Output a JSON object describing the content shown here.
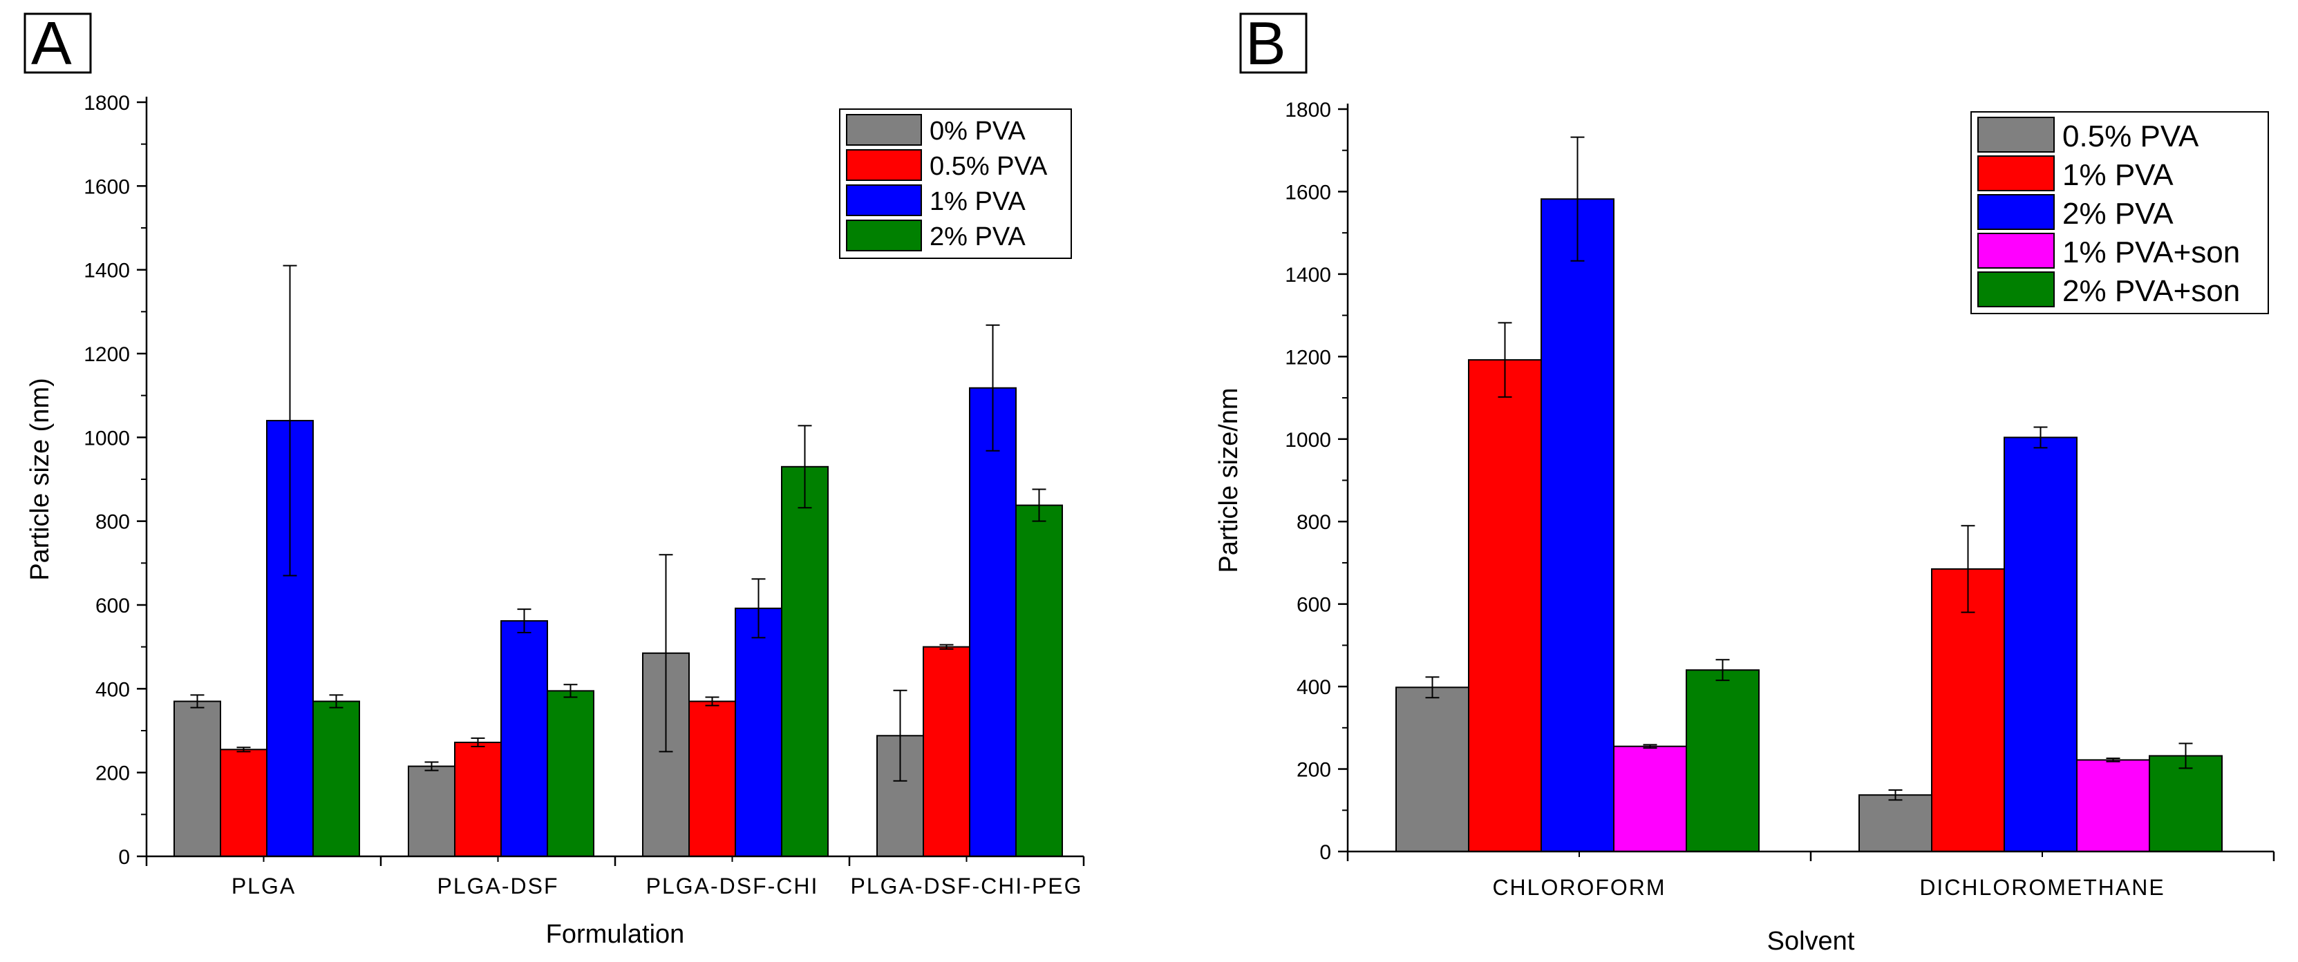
{
  "colors": {
    "gray": "#808080",
    "red": "#ff0000",
    "blue": "#0000ff",
    "green": "#008000",
    "magenta": "#ff00ff"
  },
  "chart_data": [
    {
      "type": "bar",
      "panel_label": "A",
      "xlabel": "Formulation",
      "ylabel": "Particle size (nm)",
      "ylim": [
        0,
        1800
      ],
      "yticks": [
        "0",
        "200",
        "400",
        "600",
        "800",
        "1000",
        "1200",
        "1400",
        "1600",
        "1800"
      ],
      "categories": [
        "PLGA",
        "PLGA-DSF",
        "PLGA-DSF-CHI",
        "PLGA-DSF-CHI-PEG"
      ],
      "legend_position": "top-right",
      "series": [
        {
          "name": "0% PVA",
          "color": "#808080",
          "values": [
            370,
            215,
            485,
            288
          ],
          "errors": [
            15,
            10,
            235,
            108
          ]
        },
        {
          "name": "0.5% PVA",
          "color": "#ff0000",
          "values": [
            255,
            272,
            370,
            500
          ],
          "errors": [
            5,
            10,
            10,
            5
          ]
        },
        {
          "name": "1% PVA",
          "color": "#0000ff",
          "values": [
            1040,
            562,
            592,
            1118
          ],
          "errors": [
            370,
            28,
            70,
            150
          ]
        },
        {
          "name": "2% PVA",
          "color": "#008000",
          "values": [
            370,
            395,
            930,
            838
          ],
          "errors": [
            15,
            15,
            98,
            38
          ]
        }
      ]
    },
    {
      "type": "bar",
      "panel_label": "B",
      "xlabel": "Solvent",
      "ylabel": "Particle size/nm",
      "ylim": [
        0,
        1800
      ],
      "yticks": [
        "0",
        "200",
        "400",
        "600",
        "800",
        "1000",
        "1200",
        "1400",
        "1600",
        "1800"
      ],
      "categories": [
        "CHLOROFORM",
        "DICHLOROMETHANE"
      ],
      "legend_position": "top-right",
      "series": [
        {
          "name": "0.5% PVA",
          "color": "#808080",
          "values": [
            398,
            137
          ],
          "errors": [
            25,
            12
          ]
        },
        {
          "name": "1% PVA",
          "color": "#ff0000",
          "values": [
            1192,
            685
          ],
          "errors": [
            90,
            105
          ]
        },
        {
          "name": "2% PVA",
          "color": "#0000ff",
          "values": [
            1582,
            1004
          ],
          "errors": [
            150,
            25
          ]
        },
        {
          "name": "1% PVA+son",
          "color": "#ff00ff",
          "values": [
            255,
            222
          ],
          "errors": [
            4,
            4
          ]
        },
        {
          "name": "2% PVA+son",
          "color": "#008000",
          "values": [
            440,
            232
          ],
          "errors": [
            25,
            30
          ]
        }
      ]
    }
  ]
}
